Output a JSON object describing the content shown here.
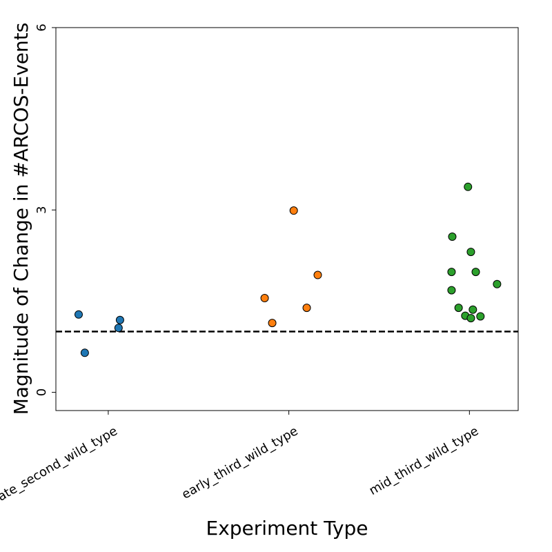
{
  "chart_data": {
    "type": "scatter",
    "x_label": "Experiment Type",
    "y_label": "Magnitude of Change in #ARCOS-Events",
    "xlim": [
      -0.29,
      2.27
    ],
    "xticks": [
      {
        "value": 0,
        "label": "late_second_wild_type"
      },
      {
        "value": 1,
        "label": "early_third_wild_type"
      },
      {
        "value": 2,
        "label": "mid_third_wild_type"
      }
    ],
    "ylim": [
      -0.3,
      6
    ],
    "yticks": [
      0,
      3,
      6
    ],
    "reference_line": 1,
    "series": [
      {
        "color": "#1f77b4",
        "x": [
          -0.164,
          -0.13,
          0.065,
          0.057
        ],
        "values": [
          1.28,
          0.65,
          1.19,
          1.06
        ]
      },
      {
        "color": "#ff7f0e",
        "x": [
          0.866,
          0.908,
          1.027,
          1.099,
          1.16
        ],
        "values": [
          1.55,
          1.14,
          2.99,
          1.39,
          1.93
        ]
      },
      {
        "color": "#2ca02c",
        "x": [
          1.992,
          1.905,
          2.008,
          1.901,
          2.035,
          2.153,
          1.901,
          1.94,
          2.019,
          1.977,
          2.008,
          2.061
        ],
        "values": [
          3.38,
          2.56,
          2.31,
          1.98,
          1.98,
          1.78,
          1.68,
          1.39,
          1.36,
          1.26,
          1.22,
          1.25
        ]
      }
    ]
  }
}
